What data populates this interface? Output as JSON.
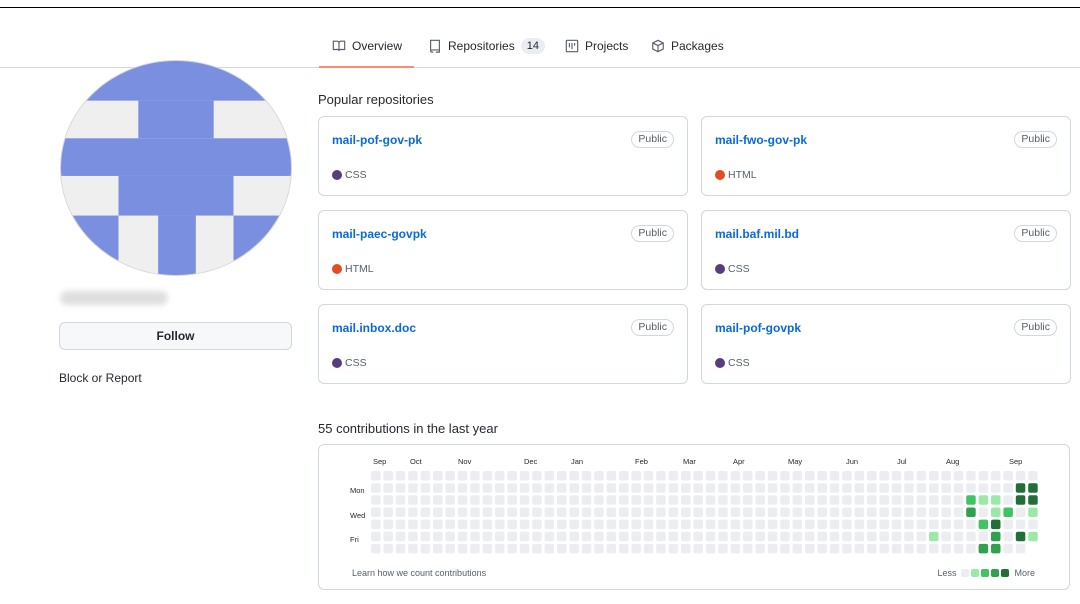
{
  "tabs": [
    {
      "label": "Overview",
      "icon": "book-icon",
      "active": true
    },
    {
      "label": "Repositories",
      "icon": "repo-icon",
      "count": "14"
    },
    {
      "label": "Projects",
      "icon": "project-icon"
    },
    {
      "label": "Packages",
      "icon": "package-icon"
    }
  ],
  "profile": {
    "follow_label": "Follow",
    "block_label": "Block or Report",
    "avatar_colors": {
      "fill": "#7b8fe0",
      "bg": "#efefef"
    }
  },
  "popular": {
    "title": "Popular repositories",
    "repos": [
      {
        "name": "mail-pof-gov-pk",
        "visibility": "Public",
        "language": "CSS",
        "lang_color": "#563d7c"
      },
      {
        "name": "mail-fwo-gov-pk",
        "visibility": "Public",
        "language": "HTML",
        "lang_color": "#e34c26"
      },
      {
        "name": "mail-paec-govpk",
        "visibility": "Public",
        "language": "HTML",
        "lang_color": "#e34c26"
      },
      {
        "name": "mail.baf.mil.bd",
        "visibility": "Public",
        "language": "CSS",
        "lang_color": "#563d7c"
      },
      {
        "name": "mail.inbox.doc",
        "visibility": "Public",
        "language": "CSS",
        "lang_color": "#563d7c"
      },
      {
        "name": "mail-pof-govpk",
        "visibility": "Public",
        "language": "CSS",
        "lang_color": "#563d7c"
      }
    ]
  },
  "contributions": {
    "title": "55 contributions in the last year",
    "months": [
      "Sep",
      "Oct",
      "Nov",
      "Dec",
      "Jan",
      "Feb",
      "Mar",
      "Apr",
      "May",
      "Jun",
      "Jul",
      "Aug",
      "Sep"
    ],
    "day_labels": [
      "Mon",
      "Wed",
      "Fri"
    ],
    "learn_label": "Learn how we count contributions",
    "legend_less": "Less",
    "legend_more": "More",
    "level_colors": [
      "#ebedf0",
      "#9be9a8",
      "#40c463",
      "#30a14e",
      "#216e39"
    ],
    "active_cells": [
      {
        "week": 45,
        "day": 5,
        "level": 1
      },
      {
        "week": 48,
        "day": 2,
        "level": 2
      },
      {
        "week": 48,
        "day": 3,
        "level": 3
      },
      {
        "week": 49,
        "day": 2,
        "level": 1
      },
      {
        "week": 49,
        "day": 4,
        "level": 2
      },
      {
        "week": 49,
        "day": 6,
        "level": 3
      },
      {
        "week": 50,
        "day": 2,
        "level": 1
      },
      {
        "week": 50,
        "day": 3,
        "level": 1
      },
      {
        "week": 50,
        "day": 4,
        "level": 4
      },
      {
        "week": 50,
        "day": 5,
        "level": 3
      },
      {
        "week": 50,
        "day": 6,
        "level": 3
      },
      {
        "week": 51,
        "day": 3,
        "level": 2
      },
      {
        "week": 51,
        "day": 7,
        "level": 1
      },
      {
        "week": 52,
        "day": 1,
        "level": 4
      },
      {
        "week": 52,
        "day": 2,
        "level": 4
      },
      {
        "week": 52,
        "day": 5,
        "level": 4
      },
      {
        "week": 53,
        "day": 1,
        "level": 4
      },
      {
        "week": 53,
        "day": 2,
        "level": 4
      },
      {
        "week": 53,
        "day": 3,
        "level": 1
      },
      {
        "week": 53,
        "day": 5,
        "level": 1
      }
    ]
  }
}
